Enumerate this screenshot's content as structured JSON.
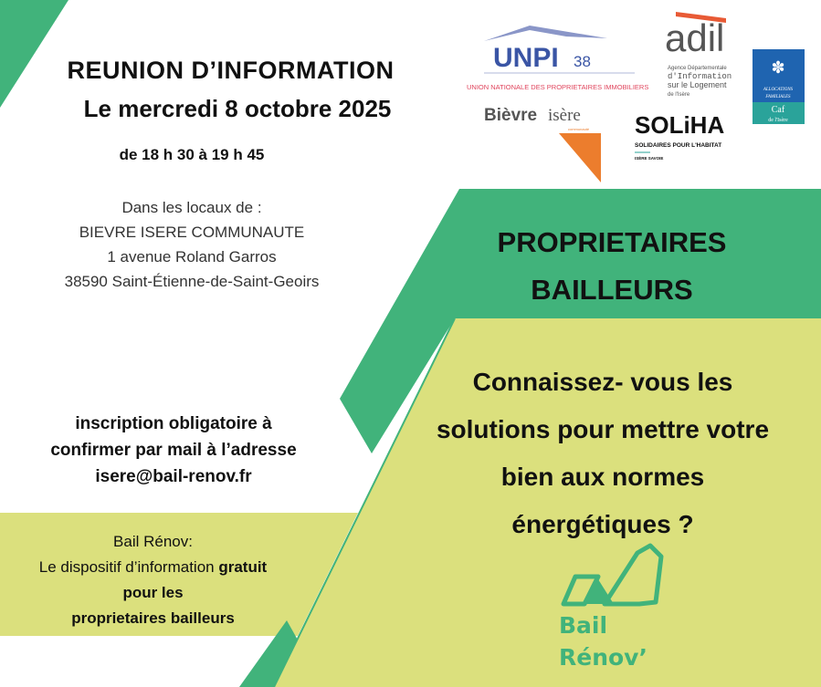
{
  "event": {
    "title": "REUNION D’INFORMATION",
    "date": "Le mercredi 8 octobre 2025",
    "time": "de 18 h 30 à 19 h 45"
  },
  "venue": {
    "intro": "Dans les locaux de :",
    "name": "BIEVRE ISERE COMMUNAUTE",
    "street": "1 avenue Roland Garros",
    "city": "38590 Saint-Étienne-de-Saint-Geoirs"
  },
  "registration": {
    "line1": "inscription obligatoire à",
    "line2": "confirmer par mail à l’adresse",
    "email": "isere@bail-renov.fr"
  },
  "bail_renov_info": {
    "line1": "Bail Rénov:",
    "line2_regular": "Le dispositif d’information ",
    "line2_bold": "gratuit",
    "line3": "pour les",
    "line4": "proprietaires bailleurs"
  },
  "audience": {
    "line1": "PROPRIETAIRES",
    "line2": "BAILLEURS"
  },
  "question": {
    "line1": "Connaissez- vous les",
    "line2": "solutions pour mettre votre",
    "line3": "bien aux normes",
    "line4": "énergétiques ?"
  },
  "logos": {
    "unpi": {
      "name": "UNPI",
      "number": "38",
      "tagline": "UNION NATIONALE DES PROPRIETAIRES IMMOBILIERS"
    },
    "adil": {
      "name": "adil",
      "line1": "Agence Départementale",
      "line2": "d'Information",
      "line3": "sur le Logement",
      "line4": "de l'Isère"
    },
    "caf": {
      "line1": "ALLOCATIONS",
      "line2": "FAMILIALES",
      "name": "Caf",
      "region": "de l'Isère"
    },
    "bievre": {
      "part1": "Bièvre",
      "part2": "isère",
      "sub": "communauté"
    },
    "soliha": {
      "name": "SOLiHA",
      "tagline": "SOLIDAIRES POUR L'HABITAT",
      "region": "ISÈRE SAVOIE"
    },
    "bail_renov": {
      "line1": "Bail",
      "line2": "Rénov’"
    }
  },
  "colors": {
    "green": "#41b37b",
    "yellow": "#dbe07d",
    "orange": "#ec7d2d",
    "unpi_blue": "#3a55a5",
    "caf_blue": "#1f64b0",
    "caf_teal": "#2aa39a"
  }
}
